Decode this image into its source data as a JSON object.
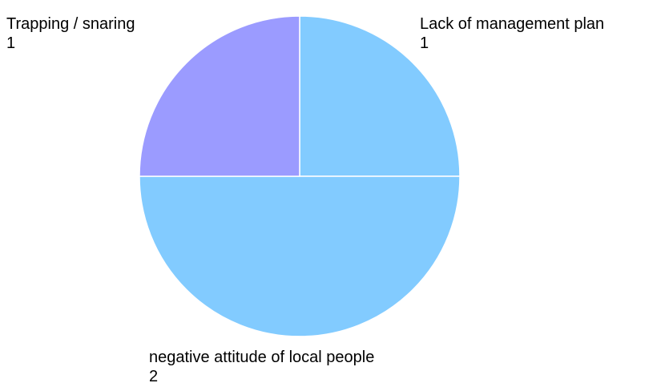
{
  "chart_data": {
    "type": "pie",
    "title": "",
    "slices": [
      {
        "label": "Lack of management plan",
        "value": 1,
        "value_text": "1",
        "color": "#82cbff"
      },
      {
        "label": "negative attitude of local people",
        "value": 2,
        "value_text": "2",
        "color": "#82cbff"
      },
      {
        "label": "Trapping / snaring",
        "value": 1,
        "value_text": "1",
        "color": "#9b9bff"
      }
    ],
    "slice_border_color": "#ffffff",
    "legend": "none",
    "start_angle": "12 o'clock",
    "direction": "clockwise"
  }
}
